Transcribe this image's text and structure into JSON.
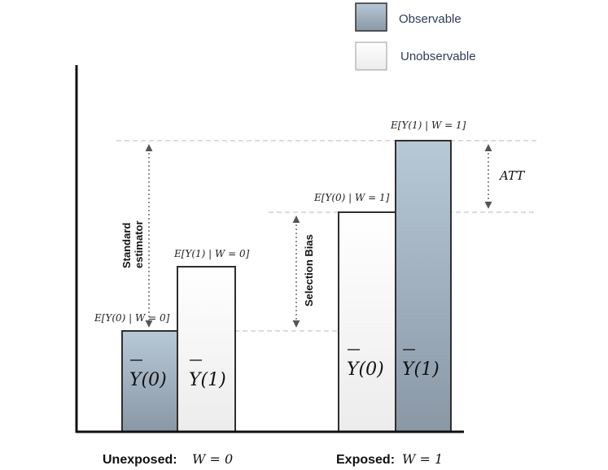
{
  "legend": {
    "observable_label": "Observable",
    "unobservable_label": "Unobservable"
  },
  "colors": {
    "observable_top": "#b7c8d6",
    "observable_bottom": "#8a98a6",
    "unobservable_top": "#ffffff",
    "unobservable_bottom": "#ececec",
    "bar_stroke": "#2f2f2f",
    "axis": "#111111",
    "dashed": "#c8c8c8",
    "arrow": "#555555",
    "legend_text": "#2d3b5a"
  },
  "annotations": {
    "e_y0_w0": "E[Y(0) | W = 0]",
    "e_y1_w0": "E[Y(1) | W = 0]",
    "e_y0_w1": "E[Y(0) | W = 1]",
    "e_y1_w1": "E[Y(1) | W = 1]",
    "standard_estimator_line1": "Standard",
    "standard_estimator_line2": "estimator",
    "selection_bias": "Selection Bias",
    "att": "ATT"
  },
  "bars": {
    "y0": "Y(0)",
    "y1": "Y(1)"
  },
  "groups": {
    "unexposed_label": "Unexposed:",
    "unexposed_value": "W = 0",
    "exposed_label": "Exposed:",
    "exposed_value": "W = 1"
  }
}
